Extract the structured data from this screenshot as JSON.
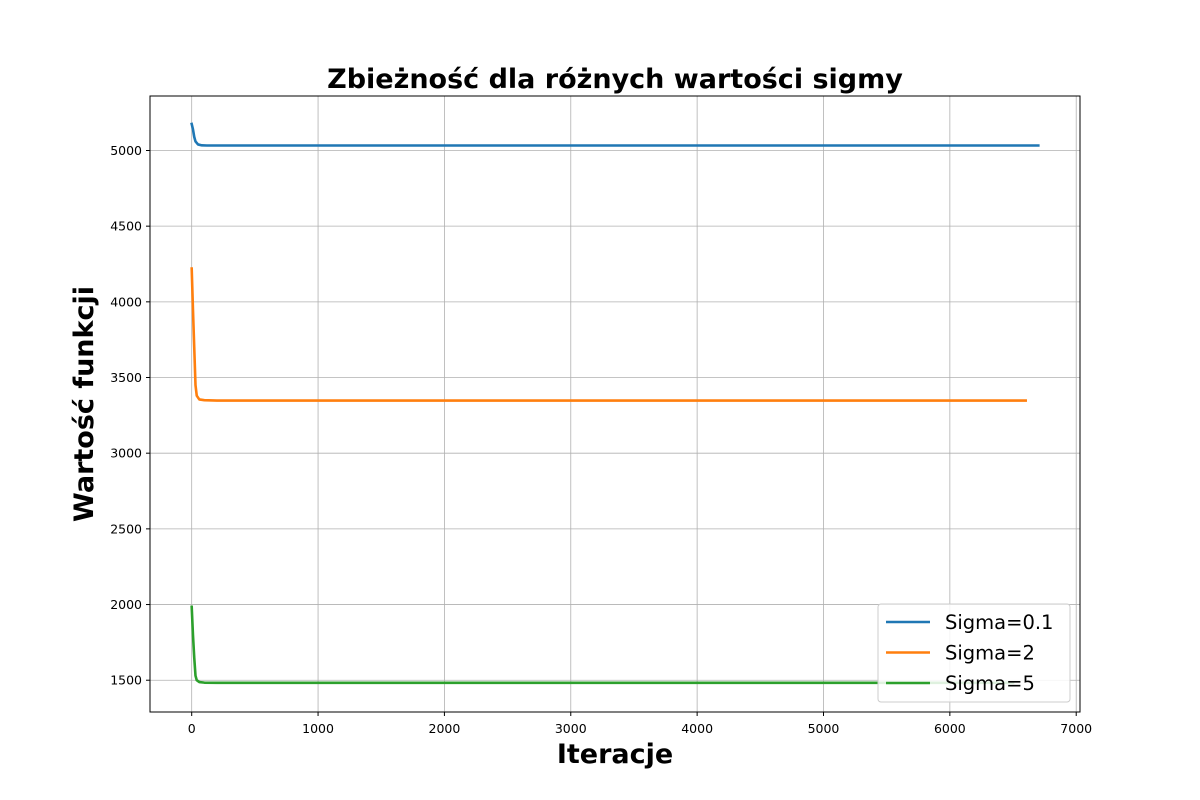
{
  "chart_data": {
    "type": "line",
    "title": "Zbieżność dla różnych wartości sigmy",
    "xlabel": "Iteracje",
    "ylabel": "Wartość funkcji",
    "xlim": [
      -330,
      7030
    ],
    "ylim": [
      1290,
      5360
    ],
    "xticks": [
      0,
      1000,
      2000,
      3000,
      4000,
      5000,
      6000,
      7000
    ],
    "yticks": [
      1500,
      2000,
      2500,
      3000,
      3500,
      4000,
      4500,
      5000
    ],
    "grid": true,
    "legend_position": "lower right",
    "series": [
      {
        "name": "Sigma=0.1",
        "color": "#1f77b4",
        "x": [
          0,
          10,
          20,
          30,
          50,
          80,
          120,
          200,
          6700
        ],
        "y": [
          5175,
          5140,
          5090,
          5060,
          5040,
          5034,
          5033,
          5033,
          5033
        ]
      },
      {
        "name": "Sigma=2",
        "color": "#ff7f0e",
        "x": [
          0,
          10,
          20,
          30,
          40,
          60,
          100,
          200,
          6600
        ],
        "y": [
          4220,
          3950,
          3700,
          3450,
          3380,
          3355,
          3350,
          3348,
          3348
        ]
      },
      {
        "name": "Sigma=5",
        "color": "#2ca02c",
        "x": [
          0,
          10,
          20,
          30,
          40,
          60,
          100,
          200,
          6500
        ],
        "y": [
          1985,
          1800,
          1650,
          1530,
          1500,
          1488,
          1484,
          1483,
          1483
        ]
      }
    ]
  }
}
